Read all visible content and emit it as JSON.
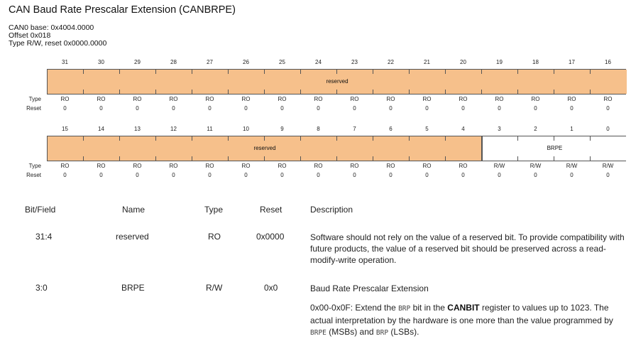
{
  "title": "CAN Baud Rate Prescalar Extension (CANBRPE)",
  "meta": {
    "base": "CAN0 base: 0x4004.0000",
    "offset": "Offset 0x018",
    "type_reset": "Type R/W, reset 0x0000.0000"
  },
  "row_labels": {
    "type": "Type",
    "reset": "Reset"
  },
  "upper": {
    "bits": [
      "31",
      "30",
      "29",
      "28",
      "27",
      "26",
      "25",
      "24",
      "23",
      "22",
      "21",
      "20",
      "19",
      "18",
      "17",
      "16"
    ],
    "fields": [
      {
        "label": "reserved",
        "from": 31,
        "to": 16,
        "kind": "reserved"
      }
    ],
    "types": [
      "RO",
      "RO",
      "RO",
      "RO",
      "RO",
      "RO",
      "RO",
      "RO",
      "RO",
      "RO",
      "RO",
      "RO",
      "RO",
      "RO",
      "RO",
      "RO"
    ],
    "resets": [
      "0",
      "0",
      "0",
      "0",
      "0",
      "0",
      "0",
      "0",
      "0",
      "0",
      "0",
      "0",
      "0",
      "0",
      "0",
      "0"
    ]
  },
  "lower": {
    "bits": [
      "15",
      "14",
      "13",
      "12",
      "11",
      "10",
      "9",
      "8",
      "7",
      "6",
      "5",
      "4",
      "3",
      "2",
      "1",
      "0"
    ],
    "fields": [
      {
        "label": "reserved",
        "from": 15,
        "to": 4,
        "kind": "reserved"
      },
      {
        "label": "BRPE",
        "from": 3,
        "to": 0,
        "kind": "rw"
      }
    ],
    "types": [
      "RO",
      "RO",
      "RO",
      "RO",
      "RO",
      "RO",
      "RO",
      "RO",
      "RO",
      "RO",
      "RO",
      "RO",
      "R/W",
      "R/W",
      "R/W",
      "R/W"
    ],
    "resets": [
      "0",
      "0",
      "0",
      "0",
      "0",
      "0",
      "0",
      "0",
      "0",
      "0",
      "0",
      "0",
      "0",
      "0",
      "0",
      "0"
    ]
  },
  "table": {
    "headers": {
      "bitfield": "Bit/Field",
      "name": "Name",
      "type": "Type",
      "reset": "Reset",
      "description": "Description"
    },
    "rows": [
      {
        "bitfield": "31:4",
        "name": "reserved",
        "type": "RO",
        "reset": "0x0000",
        "desc": "Software should not rely on the value of a reserved bit. To provide compatibility with future products, the value of a reserved bit should be preserved across a read-modify-write operation."
      },
      {
        "bitfield": "3:0",
        "name": "BRPE",
        "type": "R/W",
        "reset": "0x0",
        "desc_title": "Baud Rate Prescalar Extension",
        "desc_p1": "0x00-0x0F: Extend the ",
        "desc_code1": "BRP",
        "desc_p2": " bit in the ",
        "desc_bold": "CANBIT",
        "desc_p3": " register to values up to 1023. The actual interpretation by the hardware is one more than the value programmed by ",
        "desc_code2": "BRPE",
        "desc_p4": " (MSBs) and ",
        "desc_code3": "BRP",
        "desc_p5": " (LSBs)."
      }
    ]
  }
}
